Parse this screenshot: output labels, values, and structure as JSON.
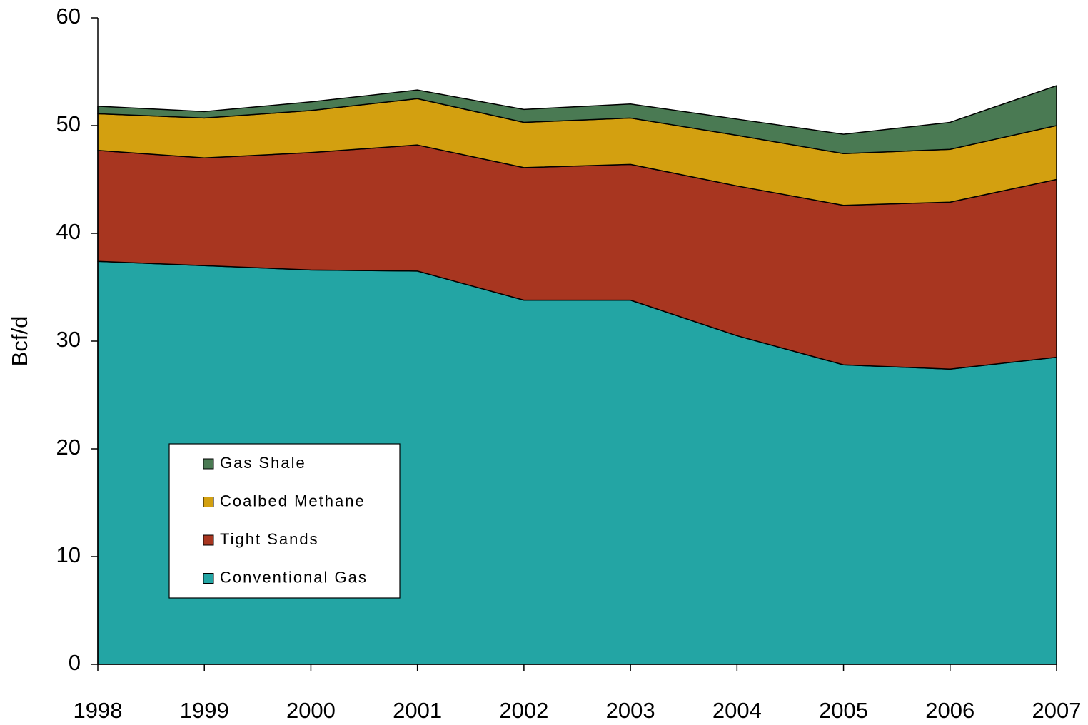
{
  "chart_data": {
    "type": "stacked_area",
    "y_label": "Bcf/d",
    "x": [
      1998,
      1999,
      2000,
      2001,
      2002,
      2003,
      2004,
      2005,
      2006,
      2007
    ],
    "xlim": [
      1998,
      2007
    ],
    "xticks": [
      1998,
      1999,
      2000,
      2001,
      2002,
      2003,
      2004,
      2005,
      2006,
      2007
    ],
    "ylim": [
      0,
      60
    ],
    "yticks": [
      0,
      10,
      20,
      30,
      40,
      50,
      60
    ],
    "series": [
      {
        "name": "Conventional Gas",
        "color": "#23a5a4",
        "values": [
          37.4,
          37.0,
          36.6,
          36.5,
          33.8,
          33.8,
          30.5,
          27.8,
          27.4,
          28.5
        ]
      },
      {
        "name": "Tight Sands",
        "color": "#a83620",
        "values": [
          10.3,
          10.0,
          10.9,
          11.7,
          12.3,
          12.6,
          13.9,
          14.8,
          15.5,
          16.5
        ]
      },
      {
        "name": "Coalbed Methane",
        "color": "#d3a010",
        "values": [
          3.4,
          3.7,
          3.9,
          4.3,
          4.2,
          4.3,
          4.7,
          4.8,
          4.9,
          5.0
        ]
      },
      {
        "name": "Gas Shale",
        "color": "#4a7a53",
        "values": [
          0.7,
          0.6,
          0.8,
          0.8,
          1.2,
          1.3,
          1.5,
          1.8,
          2.5,
          3.7
        ]
      }
    ]
  }
}
